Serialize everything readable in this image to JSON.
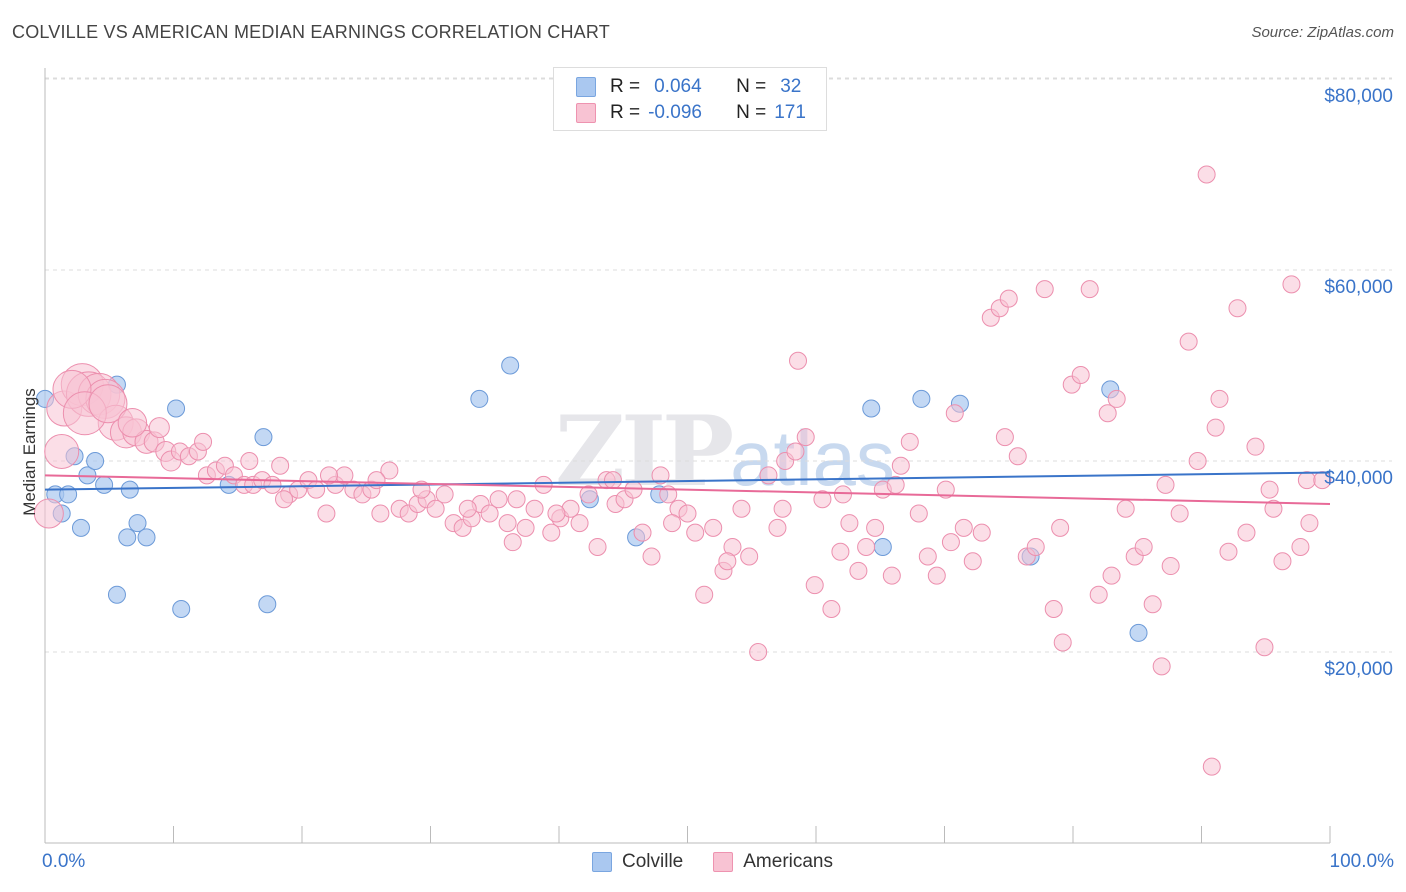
{
  "title": "COLVILLE VS AMERICAN MEDIAN EARNINGS CORRELATION CHART",
  "source": "Source: ZipAtlas.com",
  "watermark": {
    "zip": "ZIP",
    "atlas": "atlas"
  },
  "legend": {
    "rows": [
      {
        "r_label": "R =",
        "r_value": "0.064",
        "n_label": "N =",
        "n_value": "32",
        "color": "#aac8f0",
        "border": "#7aa6e0"
      },
      {
        "r_label": "R =",
        "r_value": "-0.096",
        "n_label": "N =",
        "n_value": "171",
        "color": "#f8c3d3",
        "border": "#ee93b0"
      }
    ]
  },
  "bottom_legend": [
    {
      "label": "Colville",
      "color": "#aac8f0",
      "border": "#7aa6e0"
    },
    {
      "label": "Americans",
      "color": "#f8c3d3",
      "border": "#ee93b0"
    }
  ],
  "colors": {
    "blue_line": "#3a74c9",
    "pink_line": "#e86a98",
    "blue_fill": "#aac8f0",
    "pink_fill": "#f8c3d3",
    "axis_text": "#3a74c9"
  },
  "chart_data": {
    "type": "scatter",
    "title": "COLVILLE VS AMERICAN MEDIAN EARNINGS CORRELATION CHART",
    "xlabel": "",
    "ylabel": "Median Earnings",
    "xlim": [
      0,
      100
    ],
    "ylim": [
      0,
      85000
    ],
    "x_tick_labels": [
      "0.0%",
      "100.0%"
    ],
    "y_ticks": [
      20000,
      40000,
      60000,
      80000
    ],
    "y_tick_labels": [
      "$20,000",
      "$40,000",
      "$60,000",
      "$80,000"
    ],
    "grid": true,
    "legend_position": "top-center",
    "series": [
      {
        "name": "Colville",
        "trend": {
          "x": [
            0,
            100
          ],
          "y": [
            37000,
            38800
          ]
        },
        "points": [
          [
            0,
            46500
          ],
          [
            0.8,
            36500
          ],
          [
            1.3,
            34500
          ],
          [
            1.8,
            36500
          ],
          [
            2.3,
            40500
          ],
          [
            2.8,
            33000
          ],
          [
            3.3,
            38500
          ],
          [
            3.9,
            40000
          ],
          [
            4.6,
            37500
          ],
          [
            5.6,
            48000
          ],
          [
            5.6,
            26000
          ],
          [
            6.4,
            32000
          ],
          [
            6.6,
            37000
          ],
          [
            7.2,
            33500
          ],
          [
            7.9,
            32000
          ],
          [
            10.2,
            45500
          ],
          [
            10.6,
            24500
          ],
          [
            14.3,
            37500
          ],
          [
            17.0,
            42500
          ],
          [
            17.3,
            25000
          ],
          [
            33.8,
            46500
          ],
          [
            36.2,
            50000
          ],
          [
            42.4,
            36000
          ],
          [
            46.0,
            32000
          ],
          [
            47.8,
            36500
          ],
          [
            64.3,
            45500
          ],
          [
            65.2,
            31000
          ],
          [
            68.2,
            46500
          ],
          [
            71.2,
            46000
          ],
          [
            76.7,
            30000
          ],
          [
            82.9,
            47500
          ],
          [
            85.1,
            22000
          ]
        ]
      },
      {
        "name": "Americans",
        "trend": {
          "x": [
            0,
            100
          ],
          "y": [
            38500,
            35500
          ]
        },
        "points": [
          [
            0.3,
            34500
          ],
          [
            1.3,
            41000
          ],
          [
            1.5,
            45500
          ],
          [
            2.9,
            48000
          ],
          [
            3.4,
            47000
          ],
          [
            4.2,
            47000
          ],
          [
            4.7,
            46500
          ],
          [
            5.5,
            44000
          ],
          [
            6.3,
            43000
          ],
          [
            7.1,
            43000
          ],
          [
            7.9,
            42000
          ],
          [
            8.5,
            42000
          ],
          [
            9.4,
            41000
          ],
          [
            9.8,
            40000
          ],
          [
            10.5,
            41000
          ],
          [
            11.2,
            40500
          ],
          [
            11.9,
            41000
          ],
          [
            12.6,
            38500
          ],
          [
            13.3,
            39000
          ],
          [
            14.0,
            39500
          ],
          [
            14.7,
            38500
          ],
          [
            15.5,
            37500
          ],
          [
            16.2,
            37500
          ],
          [
            16.9,
            38000
          ],
          [
            17.7,
            37500
          ],
          [
            18.3,
            39500
          ],
          [
            19.0,
            36500
          ],
          [
            19.7,
            37000
          ],
          [
            20.5,
            38000
          ],
          [
            21.1,
            37000
          ],
          [
            21.9,
            34500
          ],
          [
            22.6,
            37500
          ],
          [
            23.3,
            38500
          ],
          [
            24.0,
            37000
          ],
          [
            24.7,
            36500
          ],
          [
            25.4,
            37000
          ],
          [
            26.1,
            34500
          ],
          [
            26.8,
            39000
          ],
          [
            27.6,
            35000
          ],
          [
            28.3,
            34500
          ],
          [
            29.0,
            35500
          ],
          [
            29.7,
            36000
          ],
          [
            30.4,
            35000
          ],
          [
            31.1,
            36500
          ],
          [
            31.8,
            33500
          ],
          [
            32.5,
            33000
          ],
          [
            33.2,
            34000
          ],
          [
            33.9,
            35500
          ],
          [
            34.6,
            34500
          ],
          [
            35.3,
            36000
          ],
          [
            36.0,
            33500
          ],
          [
            36.7,
            36000
          ],
          [
            37.4,
            33000
          ],
          [
            38.1,
            35000
          ],
          [
            38.8,
            37500
          ],
          [
            39.4,
            32500
          ],
          [
            40.1,
            34000
          ],
          [
            40.9,
            35000
          ],
          [
            41.6,
            33500
          ],
          [
            42.3,
            36500
          ],
          [
            43.0,
            31000
          ],
          [
            43.7,
            38000
          ],
          [
            44.4,
            35500
          ],
          [
            45.1,
            36000
          ],
          [
            45.8,
            37000
          ],
          [
            46.5,
            32500
          ],
          [
            47.2,
            30000
          ],
          [
            47.9,
            38500
          ],
          [
            48.5,
            36500
          ],
          [
            49.3,
            35000
          ],
          [
            50.0,
            34500
          ],
          [
            50.6,
            32500
          ],
          [
            51.3,
            26000
          ],
          [
            52.0,
            33000
          ],
          [
            52.8,
            28500
          ],
          [
            53.5,
            31000
          ],
          [
            54.2,
            35000
          ],
          [
            54.8,
            30000
          ],
          [
            55.5,
            20000
          ],
          [
            56.3,
            38500
          ],
          [
            57.0,
            33000
          ],
          [
            57.6,
            40000
          ],
          [
            58.4,
            41000
          ],
          [
            58.6,
            50500
          ],
          [
            59.2,
            42500
          ],
          [
            59.9,
            27000
          ],
          [
            60.5,
            36000
          ],
          [
            61.2,
            24500
          ],
          [
            61.9,
            30500
          ],
          [
            62.6,
            33500
          ],
          [
            63.3,
            28500
          ],
          [
            63.9,
            31000
          ],
          [
            64.6,
            33000
          ],
          [
            65.2,
            37000
          ],
          [
            65.9,
            28000
          ],
          [
            66.6,
            39500
          ],
          [
            67.3,
            42000
          ],
          [
            68.0,
            34500
          ],
          [
            68.7,
            30000
          ],
          [
            69.4,
            28000
          ],
          [
            70.1,
            37000
          ],
          [
            70.8,
            45000
          ],
          [
            71.5,
            33000
          ],
          [
            72.2,
            29500
          ],
          [
            72.9,
            32500
          ],
          [
            73.6,
            55000
          ],
          [
            74.3,
            56000
          ],
          [
            75.0,
            57000
          ],
          [
            75.7,
            40500
          ],
          [
            76.4,
            30000
          ],
          [
            77.1,
            31000
          ],
          [
            77.8,
            58000
          ],
          [
            78.5,
            24500
          ],
          [
            79.2,
            21000
          ],
          [
            79.9,
            48000
          ],
          [
            80.6,
            49000
          ],
          [
            81.3,
            58000
          ],
          [
            82.0,
            26000
          ],
          [
            82.7,
            45000
          ],
          [
            83.4,
            46500
          ],
          [
            84.1,
            35000
          ],
          [
            84.8,
            30000
          ],
          [
            85.5,
            31000
          ],
          [
            86.2,
            25000
          ],
          [
            86.9,
            18500
          ],
          [
            87.6,
            29000
          ],
          [
            88.3,
            34500
          ],
          [
            89.0,
            52500
          ],
          [
            89.7,
            40000
          ],
          [
            90.4,
            70000
          ],
          [
            90.8,
            8000
          ],
          [
            91.4,
            46500
          ],
          [
            92.1,
            30500
          ],
          [
            92.8,
            56000
          ],
          [
            93.5,
            32500
          ],
          [
            94.2,
            41500
          ],
          [
            94.9,
            20500
          ],
          [
            95.6,
            35000
          ],
          [
            96.3,
            29500
          ],
          [
            97.0,
            58500
          ],
          [
            97.7,
            31000
          ],
          [
            98.2,
            38000
          ],
          [
            98.4,
            33500
          ],
          [
            2.1,
            47500
          ],
          [
            3.1,
            45000
          ],
          [
            4.9,
            46000
          ],
          [
            6.8,
            44000
          ],
          [
            8.9,
            43500
          ],
          [
            12.3,
            42000
          ],
          [
            15.9,
            40000
          ],
          [
            18.6,
            36000
          ],
          [
            22.1,
            38500
          ],
          [
            25.8,
            38000
          ],
          [
            29.3,
            37000
          ],
          [
            32.9,
            35000
          ],
          [
            36.4,
            31500
          ],
          [
            39.8,
            34500
          ],
          [
            44.2,
            38000
          ],
          [
            48.8,
            33500
          ],
          [
            53.1,
            29500
          ],
          [
            57.4,
            35000
          ],
          [
            62.1,
            36500
          ],
          [
            66.2,
            37500
          ],
          [
            70.5,
            31500
          ],
          [
            74.7,
            42500
          ],
          [
            79.0,
            33000
          ],
          [
            83.0,
            28000
          ],
          [
            87.2,
            37500
          ],
          [
            91.1,
            43500
          ],
          [
            95.3,
            37000
          ],
          [
            99.4,
            38000
          ]
        ]
      }
    ]
  }
}
